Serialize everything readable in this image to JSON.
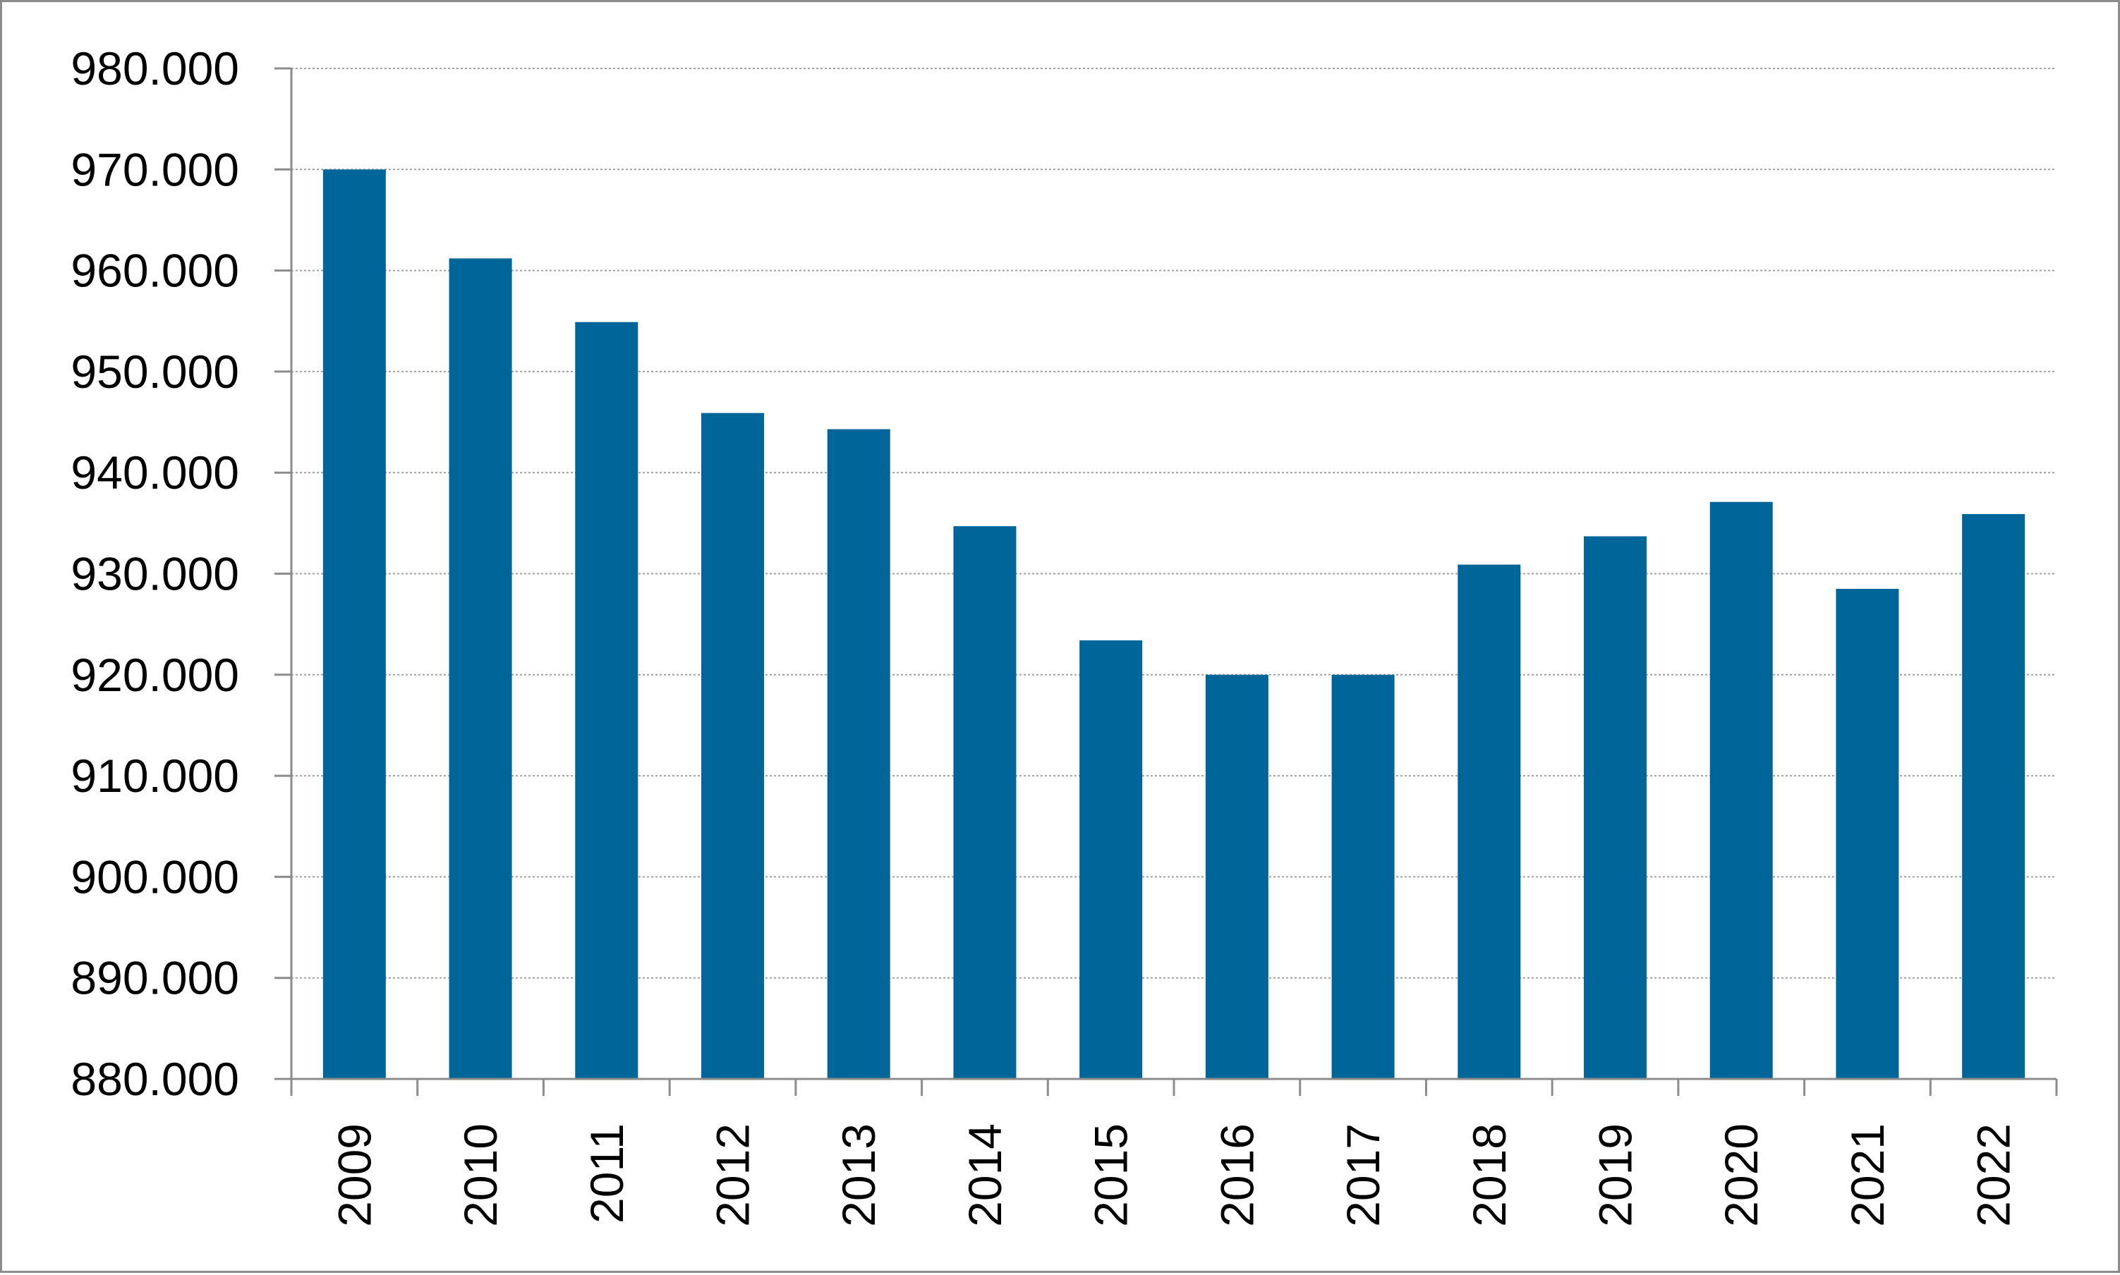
{
  "chart_data": {
    "type": "bar",
    "title": "",
    "xlabel": "",
    "ylabel": "",
    "categories": [
      "2009",
      "2010",
      "2011",
      "2012",
      "2013",
      "2014",
      "2015",
      "2016",
      "2017",
      "2018",
      "2019",
      "2020",
      "2021",
      "2022"
    ],
    "values": [
      970000,
      961200,
      954900,
      945900,
      944300,
      934700,
      923400,
      920000,
      920000,
      930900,
      933700,
      937100,
      928500,
      935900
    ],
    "ylim": [
      880000,
      980000
    ],
    "y_ticks": [
      880000,
      890000,
      900000,
      910000,
      920000,
      930000,
      940000,
      950000,
      960000,
      970000,
      980000
    ],
    "y_tick_labels": [
      "880.000",
      "890.000",
      "900.000",
      "910.000",
      "920.000",
      "930.000",
      "940.000",
      "950.000",
      "960.000",
      "970.000",
      "980.000"
    ],
    "grid": true,
    "legend": "none",
    "bar_color": "#006699",
    "gridline_color": "#a0a0a0",
    "axis_color": "#8c8c8c"
  }
}
